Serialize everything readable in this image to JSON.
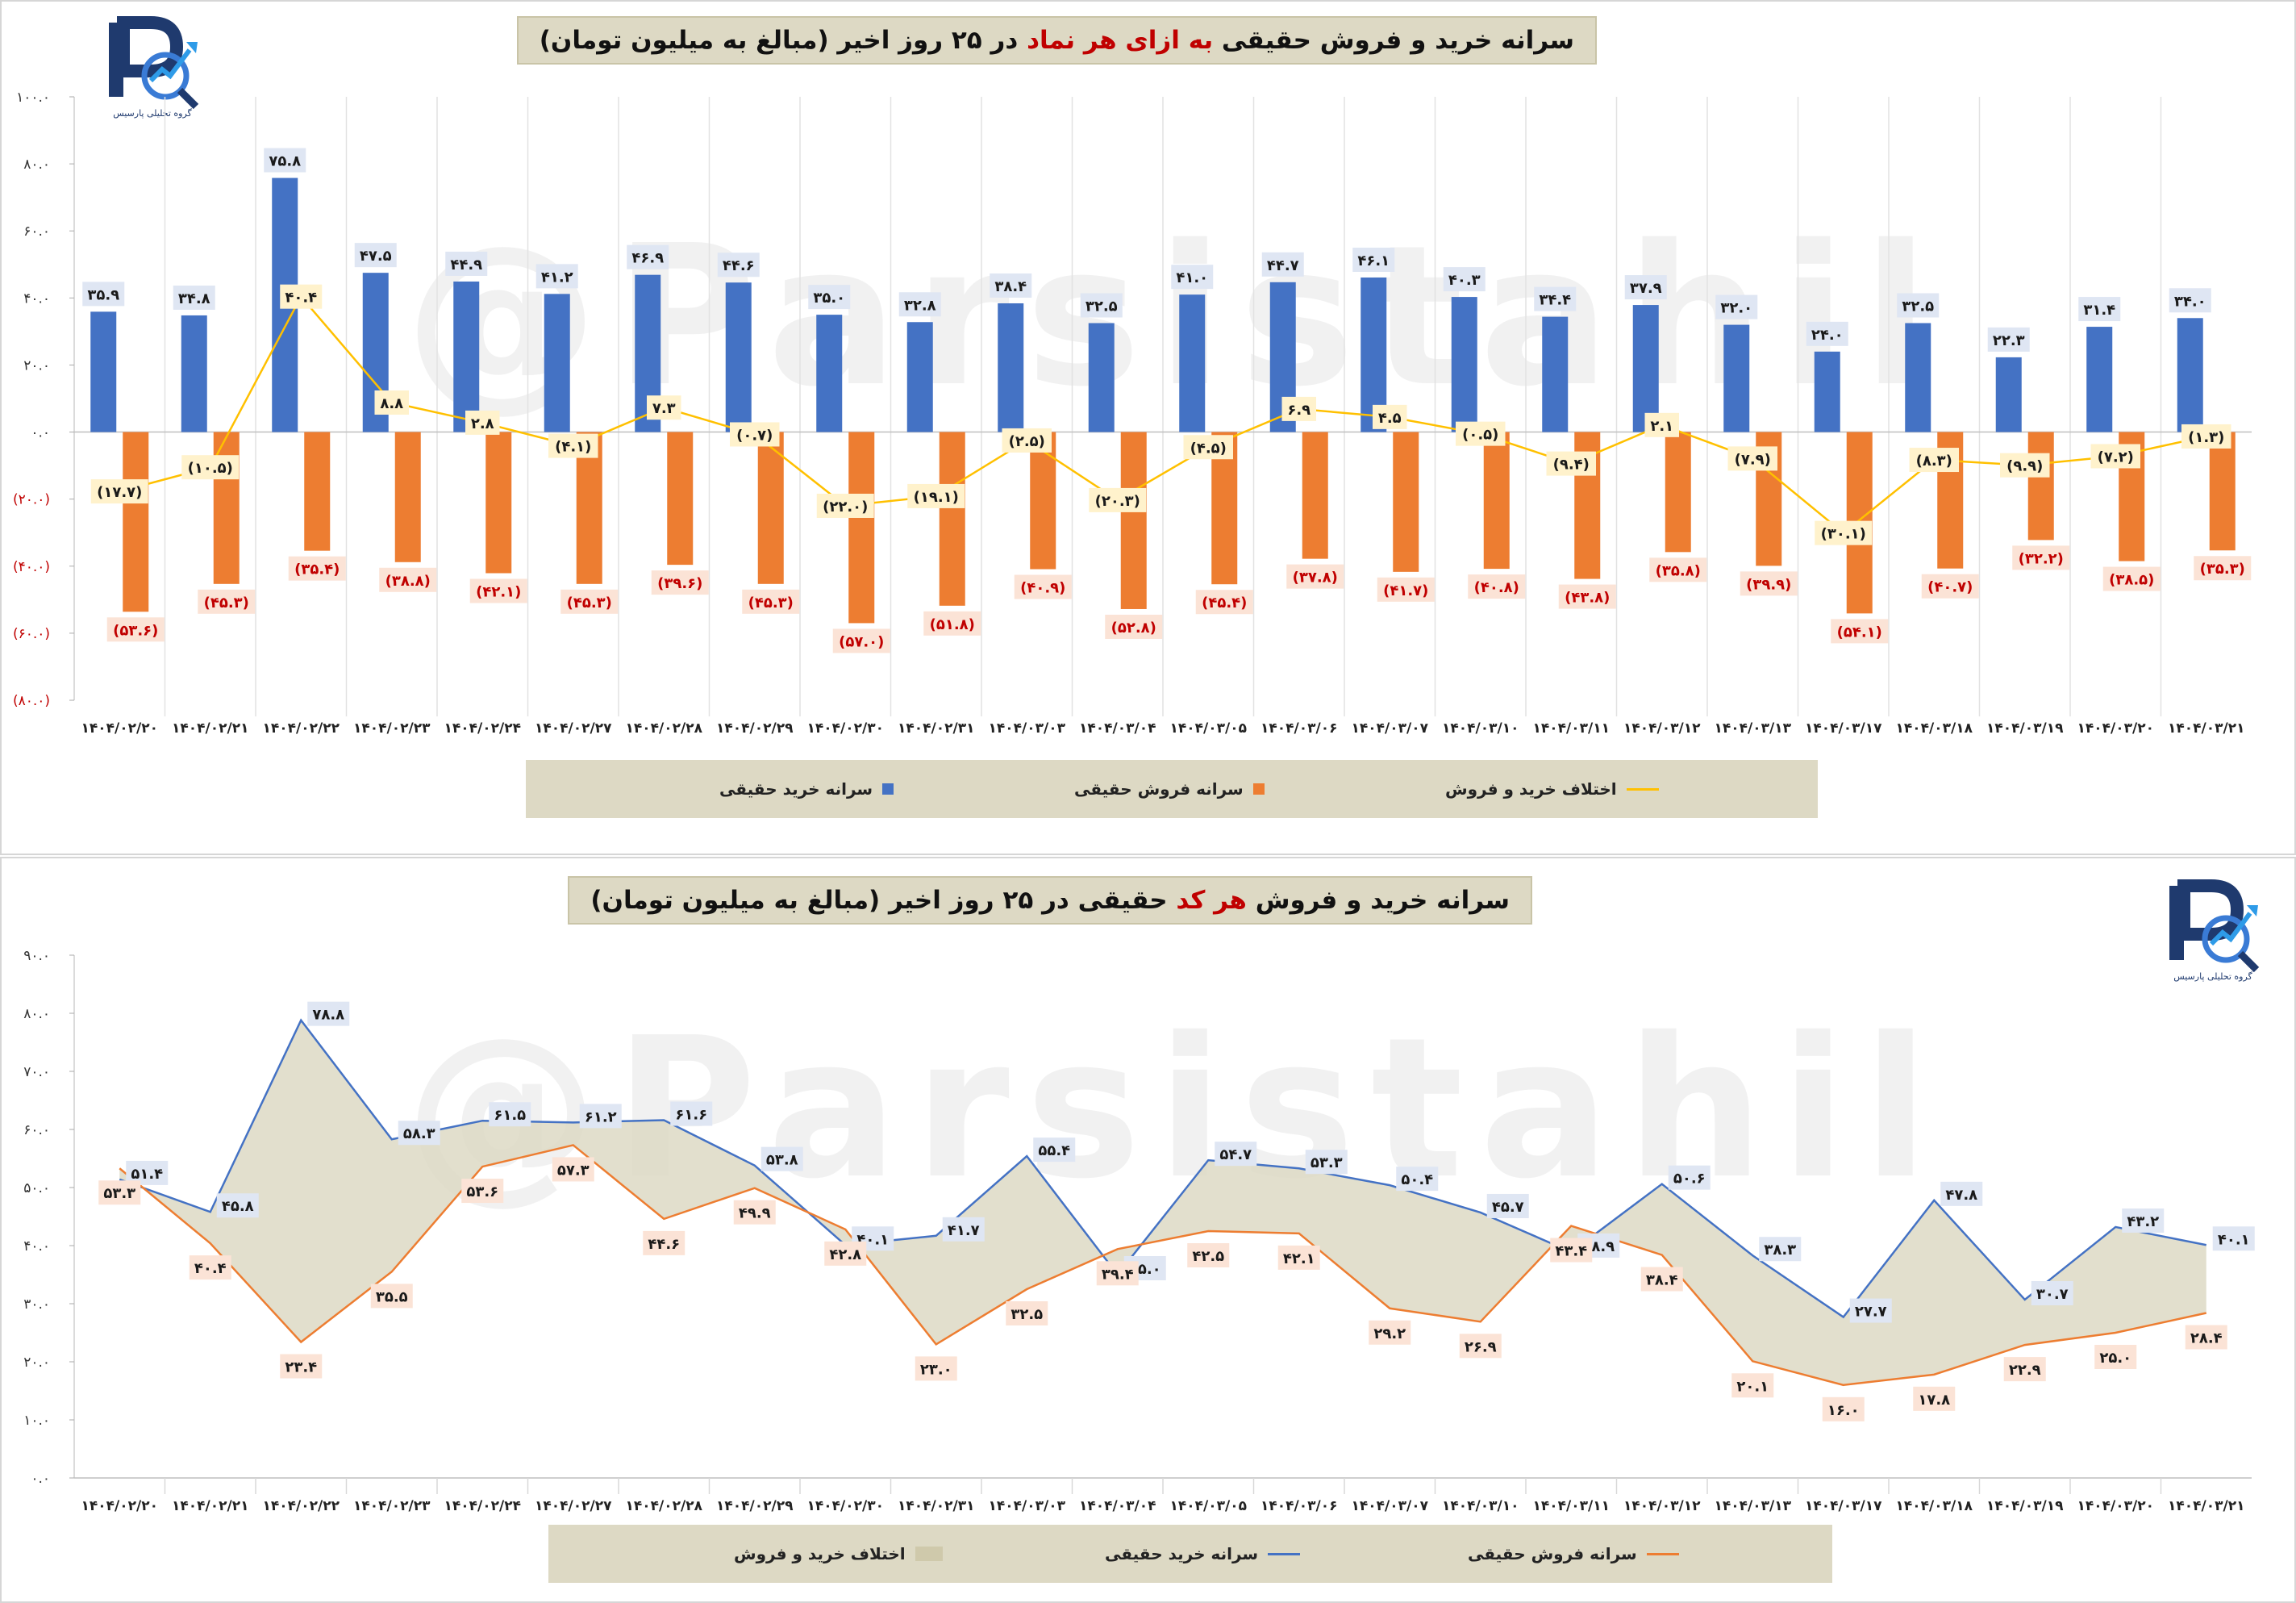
{
  "logo": {
    "text": "گروه تحلیلی پارسیس",
    "icon": "parsis-logo-icon"
  },
  "watermark": "@Parsistahil",
  "top_chart": {
    "title_parts": [
      "سرانه خرید و فروش حقیقی ",
      "به ازای هر نماد",
      " در ۲۵ روز اخیر (مبالغ به میلیون تومان)"
    ],
    "legend": [
      "سرانه خرید حقیقی",
      "سرانه فروش حقیقی",
      "اختلاف خرید و فروش"
    ]
  },
  "bottom_chart": {
    "title_parts": [
      "سرانه خرید و فروش ",
      "هر کد",
      " حقیقی در ۲۵ روز اخیر (مبالغ به میلیون تومان)"
    ],
    "legend": [
      "اختلاف خرید و فروش",
      "سرانه خرید حقیقی",
      "سرانه فروش حقیقی"
    ]
  },
  "colors": {
    "buy": "#4472c4",
    "sell": "#ed7d31",
    "diff": "#ffc000",
    "area": "#ddd9c4",
    "sell_label": "#c00000"
  },
  "chart_data": [
    {
      "type": "bar",
      "title": "سرانه خرید و فروش حقیقی به ازای هر نماد در ۲۵ روز اخیر (مبالغ به میلیون تومان)",
      "categories": [
        "۱۴۰۴/۰۲/۲۰",
        "۱۴۰۴/۰۲/۲۱",
        "۱۴۰۴/۰۲/۲۲",
        "۱۴۰۴/۰۲/۲۳",
        "۱۴۰۴/۰۲/۲۴",
        "۱۴۰۴/۰۲/۲۷",
        "۱۴۰۴/۰۲/۲۸",
        "۱۴۰۴/۰۲/۲۹",
        "۱۴۰۴/۰۲/۳۰",
        "۱۴۰۴/۰۲/۳۱",
        "۱۴۰۴/۰۳/۰۳",
        "۱۴۰۴/۰۳/۰۴",
        "۱۴۰۴/۰۳/۰۵",
        "۱۴۰۴/۰۳/۰۶",
        "۱۴۰۴/۰۳/۰۷",
        "۱۴۰۴/۰۳/۱۰",
        "۱۴۰۴/۰۳/۱۱",
        "۱۴۰۴/۰۳/۱۲",
        "۱۴۰۴/۰۳/۱۳",
        "۱۴۰۴/۰۳/۱۷",
        "۱۴۰۴/۰۳/۱۸",
        "۱۴۰۴/۰۳/۱۹",
        "۱۴۰۴/۰۳/۲۰",
        "۱۴۰۴/۰۳/۲۱"
      ],
      "series": [
        {
          "name": "سرانه خرید حقیقی",
          "values": [
            35.9,
            34.8,
            75.8,
            47.5,
            44.9,
            41.2,
            46.9,
            44.6,
            35.0,
            32.8,
            38.4,
            32.5,
            41.0,
            44.7,
            46.1,
            40.3,
            34.4,
            37.9,
            32.0,
            24.0,
            32.5,
            22.3,
            31.4,
            34.0
          ]
        },
        {
          "name": "سرانه فروش حقیقی",
          "values": [
            -53.6,
            -45.3,
            -35.4,
            -38.8,
            -42.1,
            -45.3,
            -39.6,
            -45.3,
            -57.0,
            -51.8,
            -40.9,
            -52.8,
            -45.4,
            -37.8,
            -41.7,
            -40.8,
            -43.8,
            -35.8,
            -39.9,
            -54.1,
            -40.7,
            -32.2,
            -38.5,
            -35.3
          ]
        },
        {
          "name": "اختلاف خرید و فروش",
          "type": "line",
          "values": [
            -17.7,
            -10.5,
            40.4,
            8.8,
            2.8,
            -4.1,
            7.3,
            -0.7,
            -22.0,
            -19.1,
            -2.5,
            -20.3,
            -4.5,
            6.9,
            4.5,
            -0.5,
            -9.4,
            2.1,
            -7.9,
            -30.1,
            -8.3,
            -9.9,
            -7.2,
            -1.3
          ]
        }
      ],
      "ylim": [
        -80,
        100
      ],
      "yticks": [
        "(۸۰.۰)",
        "(۶۰.۰)",
        "(۴۰.۰)",
        "(۲۰.۰)",
        "۰.۰",
        "۲۰.۰",
        "۴۰.۰",
        "۶۰.۰",
        "۸۰.۰",
        "۱۰۰.۰"
      ],
      "legend_position": "bottom"
    },
    {
      "type": "area",
      "title": "سرانه خرید و فروش هر کد حقیقی در ۲۵ روز اخیر (مبالغ به میلیون تومان)",
      "categories": [
        "۱۴۰۴/۰۲/۲۰",
        "۱۴۰۴/۰۲/۲۱",
        "۱۴۰۴/۰۲/۲۲",
        "۱۴۰۴/۰۲/۲۳",
        "۱۴۰۴/۰۲/۲۴",
        "۱۴۰۴/۰۲/۲۷",
        "۱۴۰۴/۰۲/۲۸",
        "۱۴۰۴/۰۲/۲۹",
        "۱۴۰۴/۰۲/۳۰",
        "۱۴۰۴/۰۲/۳۱",
        "۱۴۰۴/۰۳/۰۳",
        "۱۴۰۴/۰۳/۰۴",
        "۱۴۰۴/۰۳/۰۵",
        "۱۴۰۴/۰۳/۰۶",
        "۱۴۰۴/۰۳/۰۷",
        "۱۴۰۴/۰۳/۱۰",
        "۱۴۰۴/۰۳/۱۱",
        "۱۴۰۴/۰۳/۱۲",
        "۱۴۰۴/۰۳/۱۳",
        "۱۴۰۴/۰۳/۱۷",
        "۱۴۰۴/۰۳/۱۸",
        "۱۴۰۴/۰۳/۱۹",
        "۱۴۰۴/۰۳/۲۰",
        "۱۴۰۴/۰۳/۲۱"
      ],
      "series": [
        {
          "name": "سرانه خرید حقیقی",
          "values": [
            51.4,
            45.8,
            78.8,
            58.3,
            61.5,
            61.2,
            61.6,
            53.8,
            40.1,
            41.7,
            55.4,
            35.0,
            54.7,
            53.3,
            50.4,
            45.7,
            38.9,
            50.6,
            38.3,
            27.7,
            47.8,
            30.7,
            43.2,
            40.1
          ]
        },
        {
          "name": "سرانه فروش حقیقی",
          "values": [
            53.3,
            40.4,
            23.4,
            35.5,
            53.6,
            57.3,
            44.6,
            49.9,
            42.8,
            23.0,
            32.5,
            39.4,
            42.5,
            42.1,
            29.2,
            26.9,
            43.4,
            38.4,
            20.1,
            16.0,
            17.8,
            22.9,
            25.0,
            28.4
          ]
        }
      ],
      "ylim": [
        0,
        90
      ],
      "yticks": [
        "۰.۰",
        "۱۰.۰",
        "۲۰.۰",
        "۳۰.۰",
        "۴۰.۰",
        "۵۰.۰",
        "۶۰.۰",
        "۷۰.۰",
        "۸۰.۰",
        "۹۰.۰"
      ],
      "legend_position": "bottom"
    }
  ]
}
